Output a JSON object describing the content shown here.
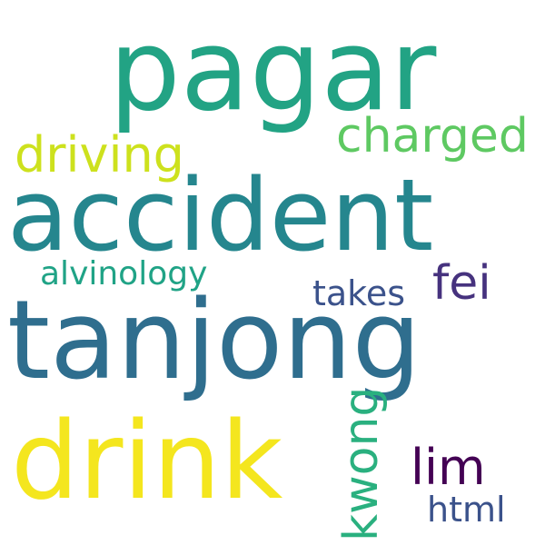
{
  "words": {
    "pagar": {
      "text": "pagar",
      "color": "#22a384"
    },
    "accident": {
      "text": "accident",
      "color": "#25868e"
    },
    "tanjong": {
      "text": "tanjong",
      "color": "#2f6e8e"
    },
    "drink": {
      "text": "drink",
      "color": "#f4e61e"
    },
    "charged": {
      "text": "charged",
      "color": "#5ec962"
    },
    "driving": {
      "text": "driving",
      "color": "#cde11d"
    },
    "alvinology": {
      "text": "alvinology",
      "color": "#20a386"
    },
    "takes": {
      "text": "takes",
      "color": "#3b528b"
    },
    "fei": {
      "text": "fei",
      "color": "#46327e"
    },
    "kwong": {
      "text": "kwong",
      "color": "#2ab07f"
    },
    "lim": {
      "text": "lim",
      "color": "#440154"
    },
    "html": {
      "text": "html",
      "color": "#3b528b"
    }
  }
}
